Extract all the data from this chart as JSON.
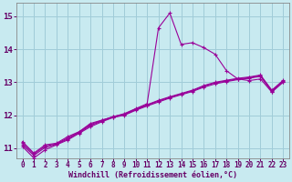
{
  "background_color": "#c8eaf0",
  "line_color": "#990099",
  "grid_color": "#a0ccd8",
  "xlabel": "Windchill (Refroidissement éolien,°C)",
  "xlabel_color": "#660066",
  "tick_color": "#660066",
  "ylim": [
    10.7,
    15.4
  ],
  "xlim": [
    -0.5,
    23.5
  ],
  "yticks": [
    11,
    12,
    13,
    14,
    15
  ],
  "xticks": [
    0,
    1,
    2,
    3,
    4,
    5,
    6,
    7,
    8,
    9,
    10,
    11,
    12,
    13,
    14,
    15,
    16,
    17,
    18,
    19,
    20,
    21,
    22,
    23
  ],
  "line1_x": [
    0,
    1,
    2,
    3,
    4,
    5,
    6,
    7,
    8,
    9,
    10,
    11,
    12,
    13,
    14,
    15,
    16,
    17,
    18,
    19,
    20,
    21,
    22,
    23
  ],
  "line1_y": [
    11.2,
    10.85,
    11.1,
    11.15,
    11.35,
    11.5,
    11.75,
    11.85,
    11.95,
    12.05,
    12.2,
    12.35,
    14.65,
    15.1,
    14.15,
    14.2,
    14.05,
    13.85,
    13.35,
    13.1,
    13.05,
    13.1,
    12.7,
    13.0
  ],
  "line2_x": [
    0,
    1,
    2,
    3,
    4,
    5,
    6,
    7,
    8,
    9,
    10,
    11,
    12,
    13,
    14,
    15,
    16,
    17,
    18,
    19,
    20,
    21,
    22,
    23
  ],
  "line2_y": [
    11.05,
    10.7,
    10.95,
    11.1,
    11.25,
    11.45,
    11.65,
    11.8,
    11.93,
    12.0,
    12.15,
    12.28,
    12.4,
    12.52,
    12.62,
    12.72,
    12.85,
    12.95,
    13.02,
    13.08,
    13.12,
    13.18,
    12.72,
    13.02
  ],
  "line3_x": [
    0,
    1,
    2,
    3,
    4,
    5,
    6,
    7,
    8,
    9,
    10,
    11,
    12,
    13,
    14,
    15,
    16,
    17,
    18,
    19,
    20,
    21,
    22,
    23
  ],
  "line3_y": [
    11.1,
    10.78,
    11.02,
    11.12,
    11.28,
    11.47,
    11.69,
    11.82,
    11.94,
    12.02,
    12.17,
    12.3,
    12.43,
    12.54,
    12.64,
    12.74,
    12.88,
    12.98,
    13.04,
    13.1,
    13.14,
    13.2,
    12.74,
    13.04
  ],
  "line4_x": [
    0,
    1,
    2,
    3,
    4,
    5,
    6,
    7,
    8,
    9,
    10,
    11,
    12,
    13,
    14,
    15,
    16,
    17,
    18,
    19,
    20,
    21,
    22,
    23
  ],
  "line4_y": [
    11.15,
    10.82,
    11.06,
    11.13,
    11.31,
    11.49,
    11.72,
    11.84,
    11.96,
    12.03,
    12.19,
    12.32,
    12.45,
    12.56,
    12.66,
    12.76,
    12.9,
    13.0,
    13.06,
    13.12,
    13.16,
    13.22,
    12.76,
    13.06
  ]
}
